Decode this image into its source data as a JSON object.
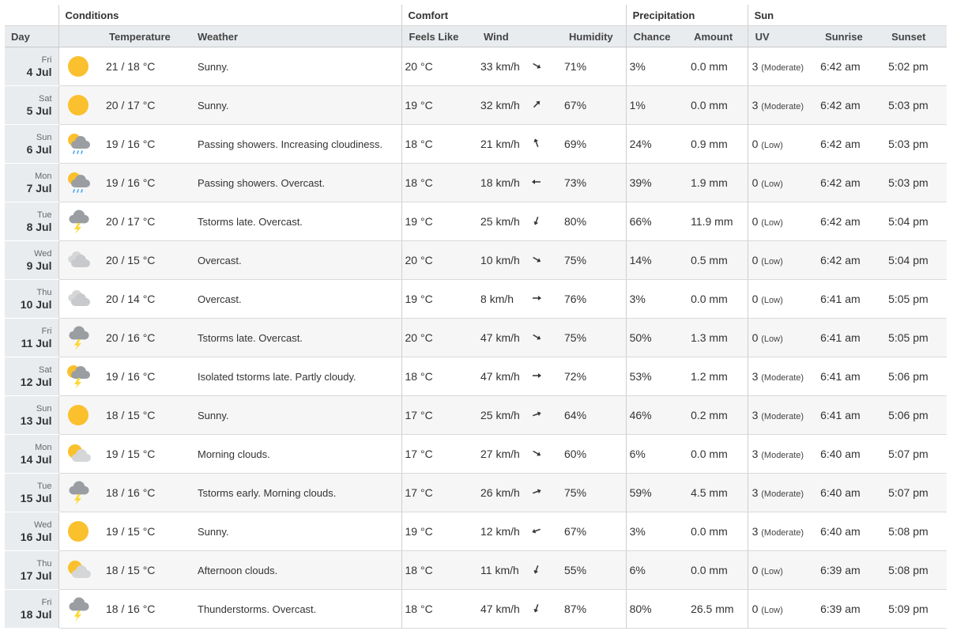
{
  "groups": {
    "conditions": "Conditions",
    "comfort": "Comfort",
    "precipitation": "Precipitation",
    "sun": "Sun"
  },
  "columns": {
    "day": "Day",
    "temperature": "Temperature",
    "weather": "Weather",
    "feels_like": "Feels Like",
    "wind": "Wind",
    "humidity": "Humidity",
    "chance": "Chance",
    "amount": "Amount",
    "uv": "UV",
    "sunrise": "Sunrise",
    "sunset": "Sunset"
  },
  "rows": [
    {
      "dow": "Fri",
      "date": "4 Jul",
      "icon": "sun-icon",
      "temp": "21 / 18 °C",
      "weather": "Sunny.",
      "feels": "20 °C",
      "wind": "33 km/h",
      "wind_dir_deg": 300,
      "humidity": "71%",
      "chance": "3%",
      "amount": "0.0 mm",
      "uv": "3",
      "uv_desc": "(Moderate)",
      "sunrise": "6:42 am",
      "sunset": "5:02 pm"
    },
    {
      "dow": "Sat",
      "date": "5 Jul",
      "icon": "sun-icon",
      "temp": "20 / 17 °C",
      "weather": "Sunny.",
      "feels": "19 °C",
      "wind": "32 km/h",
      "wind_dir_deg": 225,
      "humidity": "67%",
      "chance": "1%",
      "amount": "0.0 mm",
      "uv": "3",
      "uv_desc": "(Moderate)",
      "sunrise": "6:42 am",
      "sunset": "5:03 pm"
    },
    {
      "dow": "Sun",
      "date": "6 Jul",
      "icon": "sun-cloud-rain-icon",
      "temp": "19 / 16 °C",
      "weather": "Passing showers. Increasing cloudiness.",
      "feels": "18 °C",
      "wind": "21 km/h",
      "wind_dir_deg": 160,
      "humidity": "69%",
      "chance": "24%",
      "amount": "0.9 mm",
      "uv": "0",
      "uv_desc": "(Low)",
      "sunrise": "6:42 am",
      "sunset": "5:03 pm"
    },
    {
      "dow": "Mon",
      "date": "7 Jul",
      "icon": "sun-cloud-rain-icon",
      "temp": "19 / 16 °C",
      "weather": "Passing showers. Overcast.",
      "feels": "18 °C",
      "wind": "18 km/h",
      "wind_dir_deg": 90,
      "humidity": "73%",
      "chance": "39%",
      "amount": "1.9 mm",
      "uv": "0",
      "uv_desc": "(Low)",
      "sunrise": "6:42 am",
      "sunset": "5:03 pm"
    },
    {
      "dow": "Tue",
      "date": "8 Jul",
      "icon": "thunderstorm-icon",
      "temp": "20 / 17 °C",
      "weather": "Tstorms late. Overcast.",
      "feels": "19 °C",
      "wind": "25 km/h",
      "wind_dir_deg": 20,
      "humidity": "80%",
      "chance": "66%",
      "amount": "11.9 mm",
      "uv": "0",
      "uv_desc": "(Low)",
      "sunrise": "6:42 am",
      "sunset": "5:04 pm"
    },
    {
      "dow": "Wed",
      "date": "9 Jul",
      "icon": "cloud-icon",
      "temp": "20 / 15 °C",
      "weather": "Overcast.",
      "feels": "20 °C",
      "wind": "10 km/h",
      "wind_dir_deg": 300,
      "humidity": "75%",
      "chance": "14%",
      "amount": "0.5 mm",
      "uv": "0",
      "uv_desc": "(Low)",
      "sunrise": "6:42 am",
      "sunset": "5:04 pm"
    },
    {
      "dow": "Thu",
      "date": "10 Jul",
      "icon": "cloud-icon",
      "temp": "20 / 14 °C",
      "weather": "Overcast.",
      "feels": "19 °C",
      "wind": "8 km/h",
      "wind_dir_deg": 270,
      "humidity": "76%",
      "chance": "3%",
      "amount": "0.0 mm",
      "uv": "0",
      "uv_desc": "(Low)",
      "sunrise": "6:41 am",
      "sunset": "5:05 pm"
    },
    {
      "dow": "Fri",
      "date": "11 Jul",
      "icon": "thunderstorm-icon",
      "temp": "20 / 16 °C",
      "weather": "Tstorms late. Overcast.",
      "feels": "20 °C",
      "wind": "47 km/h",
      "wind_dir_deg": 300,
      "humidity": "75%",
      "chance": "50%",
      "amount": "1.3 mm",
      "uv": "0",
      "uv_desc": "(Low)",
      "sunrise": "6:41 am",
      "sunset": "5:05 pm"
    },
    {
      "dow": "Sat",
      "date": "12 Jul",
      "icon": "sun-thunderstorm-icon",
      "temp": "19 / 16 °C",
      "weather": "Isolated tstorms late. Partly cloudy.",
      "feels": "18 °C",
      "wind": "47 km/h",
      "wind_dir_deg": 270,
      "humidity": "72%",
      "chance": "53%",
      "amount": "1.2 mm",
      "uv": "3",
      "uv_desc": "(Moderate)",
      "sunrise": "6:41 am",
      "sunset": "5:06 pm"
    },
    {
      "dow": "Sun",
      "date": "13 Jul",
      "icon": "sun-icon",
      "temp": "18 / 15 °C",
      "weather": "Sunny.",
      "feels": "17 °C",
      "wind": "25 km/h",
      "wind_dir_deg": 250,
      "humidity": "64%",
      "chance": "46%",
      "amount": "0.2 mm",
      "uv": "3",
      "uv_desc": "(Moderate)",
      "sunrise": "6:41 am",
      "sunset": "5:06 pm"
    },
    {
      "dow": "Mon",
      "date": "14 Jul",
      "icon": "sun-cloud-icon",
      "temp": "19 / 15 °C",
      "weather": "Morning clouds.",
      "feels": "17 °C",
      "wind": "27 km/h",
      "wind_dir_deg": 300,
      "humidity": "60%",
      "chance": "6%",
      "amount": "0.0 mm",
      "uv": "3",
      "uv_desc": "(Moderate)",
      "sunrise": "6:40 am",
      "sunset": "5:07 pm"
    },
    {
      "dow": "Tue",
      "date": "15 Jul",
      "icon": "thunderstorm-icon",
      "temp": "18 / 16 °C",
      "weather": "Tstorms early. Morning clouds.",
      "feels": "17 °C",
      "wind": "26 km/h",
      "wind_dir_deg": 250,
      "humidity": "75%",
      "chance": "59%",
      "amount": "4.5 mm",
      "uv": "3",
      "uv_desc": "(Moderate)",
      "sunrise": "6:40 am",
      "sunset": "5:07 pm"
    },
    {
      "dow": "Wed",
      "date": "16 Jul",
      "icon": "sun-icon",
      "temp": "19 / 15 °C",
      "weather": "Sunny.",
      "feels": "19 °C",
      "wind": "12 km/h",
      "wind_dir_deg": 70,
      "humidity": "67%",
      "chance": "3%",
      "amount": "0.0 mm",
      "uv": "3",
      "uv_desc": "(Moderate)",
      "sunrise": "6:40 am",
      "sunset": "5:08 pm"
    },
    {
      "dow": "Thu",
      "date": "17 Jul",
      "icon": "sun-cloud-icon",
      "temp": "18 / 15 °C",
      "weather": "Afternoon clouds.",
      "feels": "18 °C",
      "wind": "11 km/h",
      "wind_dir_deg": 20,
      "humidity": "55%",
      "chance": "6%",
      "amount": "0.0 mm",
      "uv": "0",
      "uv_desc": "(Low)",
      "sunrise": "6:39 am",
      "sunset": "5:08 pm"
    },
    {
      "dow": "Fri",
      "date": "18 Jul",
      "icon": "thunderstorm-icon",
      "temp": "18 / 16 °C",
      "weather": "Thunderstorms. Overcast.",
      "feels": "18 °C",
      "wind": "47 km/h",
      "wind_dir_deg": 20,
      "humidity": "87%",
      "chance": "80%",
      "amount": "26.5 mm",
      "uv": "0",
      "uv_desc": "(Low)",
      "sunrise": "6:39 am",
      "sunset": "5:09 pm"
    }
  ],
  "colors": {
    "sun": "#fbc02d",
    "cloud_light": "#d4d6d8",
    "cloud_dark": "#9a9ea3",
    "rain": "#42a5f5",
    "bolt": "#fdd835",
    "header_bg": "#e9ecef"
  }
}
